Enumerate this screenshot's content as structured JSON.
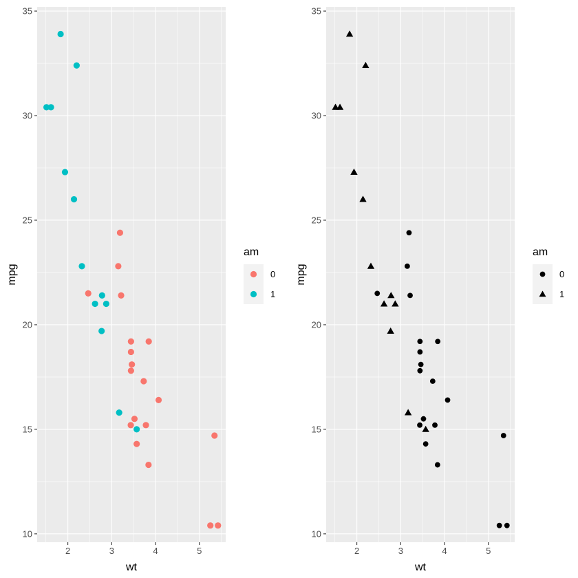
{
  "chart_data": [
    {
      "type": "scatter",
      "title": "",
      "xlabel": "wt",
      "ylabel": "mpg",
      "xlim": [
        1.3,
        5.6
      ],
      "ylim": [
        9.6,
        35.2
      ],
      "xticks": [
        2,
        3,
        4,
        5
      ],
      "yticks": [
        10,
        15,
        20,
        25,
        30,
        35
      ],
      "grid": true,
      "legend": {
        "title": "am",
        "placement": "right",
        "mapping": "colour",
        "entries": [
          {
            "label": "0",
            "color": "#F8766D",
            "shape": "circle"
          },
          {
            "label": "1",
            "color": "#00BFC4",
            "shape": "circle"
          }
        ]
      },
      "points_ref": "mtcars"
    },
    {
      "type": "scatter",
      "title": "",
      "xlabel": "wt",
      "ylabel": "mpg",
      "xlim": [
        1.3,
        5.6
      ],
      "ylim": [
        9.6,
        35.2
      ],
      "xticks": [
        2,
        3,
        4,
        5
      ],
      "yticks": [
        10,
        15,
        20,
        25,
        30,
        35
      ],
      "grid": true,
      "legend": {
        "title": "am",
        "placement": "right",
        "mapping": "shape",
        "entries": [
          {
            "label": "0",
            "color": "#000000",
            "shape": "circle"
          },
          {
            "label": "1",
            "color": "#000000",
            "shape": "triangle"
          }
        ]
      },
      "points_ref": "mtcars"
    }
  ],
  "mtcars": [
    {
      "wt": 2.62,
      "mpg": 21.0,
      "am": 1
    },
    {
      "wt": 2.875,
      "mpg": 21.0,
      "am": 1
    },
    {
      "wt": 2.32,
      "mpg": 22.8,
      "am": 1
    },
    {
      "wt": 3.215,
      "mpg": 21.4,
      "am": 0
    },
    {
      "wt": 3.44,
      "mpg": 18.7,
      "am": 0
    },
    {
      "wt": 3.46,
      "mpg": 18.1,
      "am": 0
    },
    {
      "wt": 3.57,
      "mpg": 14.3,
      "am": 0
    },
    {
      "wt": 3.19,
      "mpg": 24.4,
      "am": 0
    },
    {
      "wt": 3.15,
      "mpg": 22.8,
      "am": 0
    },
    {
      "wt": 3.44,
      "mpg": 19.2,
      "am": 0
    },
    {
      "wt": 3.44,
      "mpg": 17.8,
      "am": 0
    },
    {
      "wt": 4.07,
      "mpg": 16.4,
      "am": 0
    },
    {
      "wt": 3.73,
      "mpg": 17.3,
      "am": 0
    },
    {
      "wt": 3.78,
      "mpg": 15.2,
      "am": 0
    },
    {
      "wt": 5.25,
      "mpg": 10.4,
      "am": 0
    },
    {
      "wt": 5.424,
      "mpg": 10.4,
      "am": 0
    },
    {
      "wt": 5.345,
      "mpg": 14.7,
      "am": 0
    },
    {
      "wt": 2.2,
      "mpg": 32.4,
      "am": 1
    },
    {
      "wt": 1.615,
      "mpg": 30.4,
      "am": 1
    },
    {
      "wt": 1.835,
      "mpg": 33.9,
      "am": 1
    },
    {
      "wt": 2.465,
      "mpg": 21.5,
      "am": 0
    },
    {
      "wt": 3.52,
      "mpg": 15.5,
      "am": 0
    },
    {
      "wt": 3.435,
      "mpg": 15.2,
      "am": 0
    },
    {
      "wt": 3.84,
      "mpg": 13.3,
      "am": 0
    },
    {
      "wt": 3.845,
      "mpg": 19.2,
      "am": 0
    },
    {
      "wt": 1.935,
      "mpg": 27.3,
      "am": 1
    },
    {
      "wt": 2.14,
      "mpg": 26.0,
      "am": 1
    },
    {
      "wt": 1.513,
      "mpg": 30.4,
      "am": 1
    },
    {
      "wt": 3.17,
      "mpg": 15.8,
      "am": 1
    },
    {
      "wt": 2.77,
      "mpg": 19.7,
      "am": 1
    },
    {
      "wt": 3.57,
      "mpg": 15.0,
      "am": 1
    },
    {
      "wt": 2.78,
      "mpg": 21.4,
      "am": 1
    }
  ],
  "colors": {
    "panel_bg": "#EBEBEB",
    "grid": "#FFFFFF",
    "legend_key_bg": "#F2F2F2"
  }
}
